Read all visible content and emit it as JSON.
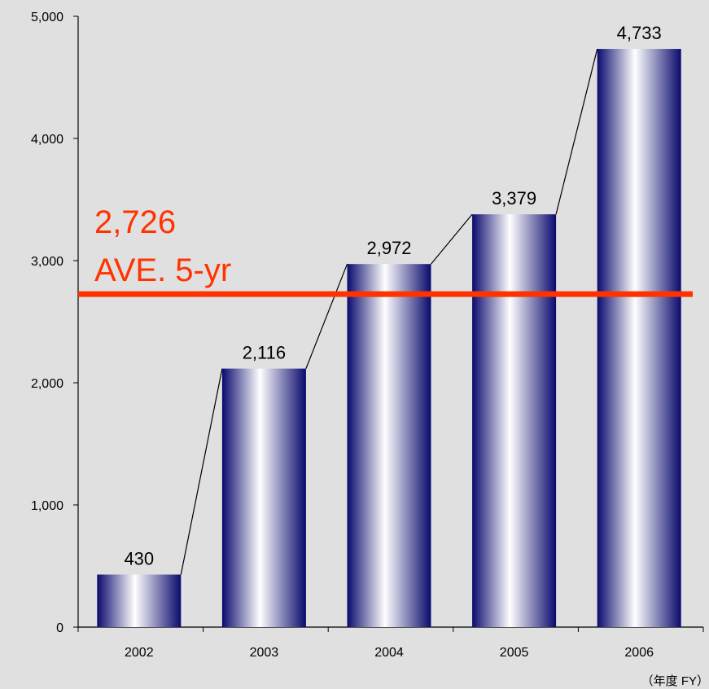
{
  "chart_data": {
    "type": "bar",
    "categories": [
      "2002",
      "2003",
      "2004",
      "2005",
      "2006"
    ],
    "values": [
      430,
      2116,
      2972,
      3379,
      4733
    ],
    "data_labels": [
      "430",
      "2,116",
      "2,972",
      "3,379",
      "4,733"
    ],
    "ylim": [
      0,
      5000
    ],
    "yticks": [
      0,
      1000,
      2000,
      3000,
      4000,
      5000
    ],
    "ytick_labels": [
      "0",
      "1,000",
      "2,000",
      "3,000",
      "4,000",
      "5,000"
    ],
    "connector_lines": true,
    "grid": false,
    "average": {
      "value": 2726,
      "value_label": "2,726",
      "label": "AVE. 5-yr",
      "color": "#ff3300"
    },
    "x_unit_label": "（年度 FY）",
    "colors": {
      "bar_dark": "#0a0a6e",
      "bar_light": "#ffffff",
      "background": "#e0e0e0"
    }
  }
}
